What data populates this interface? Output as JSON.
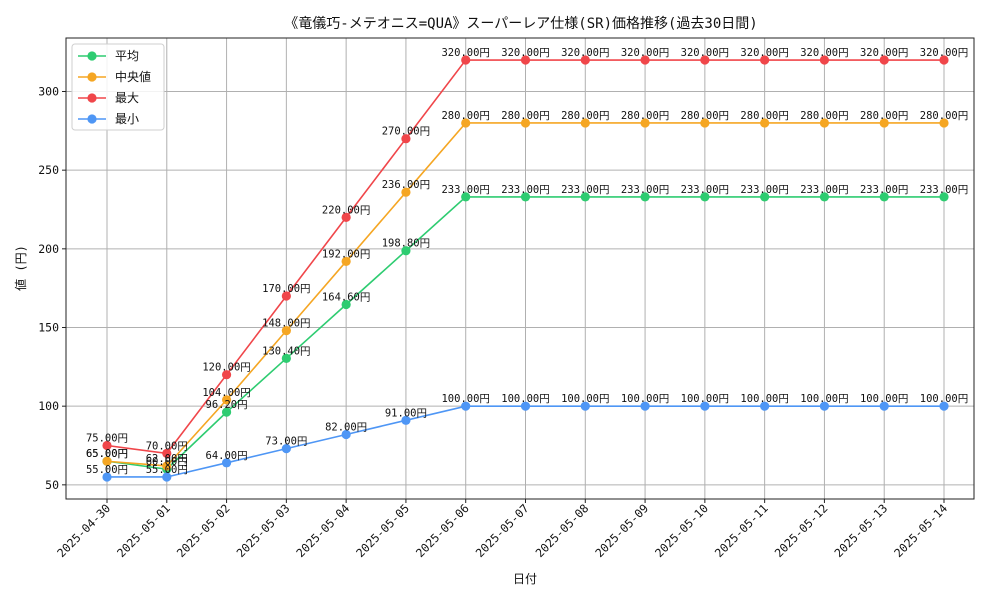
{
  "chart_data": {
    "type": "line",
    "title": "《竜儀巧-メテオニス=QUA》スーパーレア仕様(SR)価格推移(過去30日間)",
    "xlabel": "日付",
    "ylabel": "値 (円)",
    "ylim": [
      41,
      334
    ],
    "yticks": [
      50,
      100,
      150,
      200,
      250,
      300
    ],
    "grid": true,
    "legend_position": "top-left",
    "categories": [
      "2025-04-30",
      "2025-05-01",
      "2025-05-02",
      "2025-05-03",
      "2025-05-04",
      "2025-05-05",
      "2025-05-06",
      "2025-05-07",
      "2025-05-08",
      "2025-05-09",
      "2025-05-10",
      "2025-05-11",
      "2025-05-12",
      "2025-05-13",
      "2025-05-14"
    ],
    "series": [
      {
        "name": "平均",
        "color": "#2ecc71",
        "values": [
          65,
          60,
          96.2,
          130.4,
          164.6,
          198.8,
          233,
          233,
          233,
          233,
          233,
          233,
          233,
          233,
          233
        ],
        "labels": [
          "65.00円",
          "60.00円",
          "96.20円",
          "130.40円",
          "164.60円",
          "198.80円",
          "233.00円",
          "233.00円",
          "233.00円",
          "233.00円",
          "233.00円",
          "233.00円",
          "233.00円",
          "233.00円",
          "233.00円"
        ]
      },
      {
        "name": "中央値",
        "color": "#f5a623",
        "values": [
          65,
          62,
          104,
          148,
          192,
          236,
          280,
          280,
          280,
          280,
          280,
          280,
          280,
          280,
          280
        ],
        "labels": [
          "65.00円",
          "62.00円",
          "104.00円",
          "148.00円",
          "192.00円",
          "236.00円",
          "280.00円",
          "280.00円",
          "280.00円",
          "280.00円",
          "280.00円",
          "280.00円",
          "280.00円",
          "280.00円",
          "280.00円"
        ]
      },
      {
        "name": "最大",
        "color": "#f0464a",
        "values": [
          75,
          70,
          120,
          170,
          220,
          270,
          320,
          320,
          320,
          320,
          320,
          320,
          320,
          320,
          320
        ],
        "labels": [
          "75.00円",
          "70.00円",
          "120.00円",
          "170.00円",
          "220.00円",
          "270.00円",
          "320.00円",
          "320.00円",
          "320.00円",
          "320.00円",
          "320.00円",
          "320.00円",
          "320.00円",
          "320.00円",
          "320.00円"
        ]
      },
      {
        "name": "最小",
        "color": "#4e96f5",
        "values": [
          55,
          55,
          64,
          73,
          82,
          91,
          100,
          100,
          100,
          100,
          100,
          100,
          100,
          100,
          100
        ],
        "labels": [
          "55.00円",
          "55.00円",
          "64.00円",
          "73.00円",
          "82.00円",
          "91.00円",
          "100.00円",
          "100.00円",
          "100.00円",
          "100.00円",
          "100.00円",
          "100.00円",
          "100.00円",
          "100.00円",
          "100.00円"
        ]
      }
    ]
  }
}
